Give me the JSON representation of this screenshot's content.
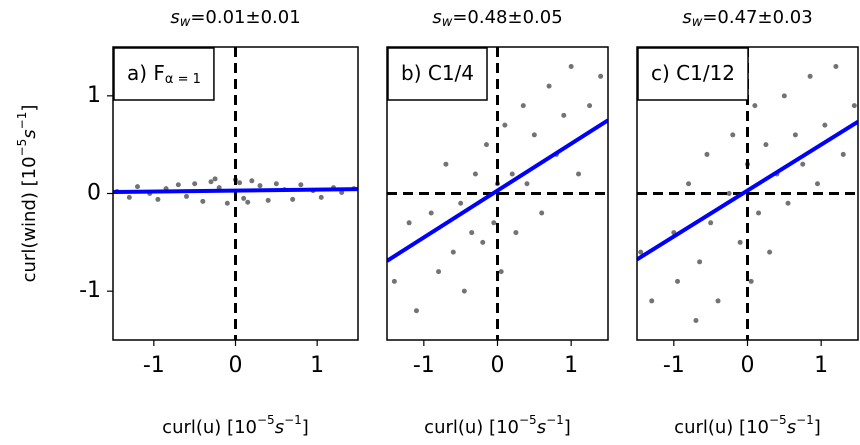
{
  "chart_data": [
    {
      "type": "scatter",
      "title": {
        "symbol": "s",
        "subscript": "w",
        "text": "=0.01±0.01"
      },
      "panel_label": {
        "text": "a) F",
        "subscript": "α = 1"
      },
      "xlabel": {
        "text": "curl(u) [10",
        "sup1": "−5",
        "unit": "s",
        "sup2": "−1",
        "close": "]"
      },
      "ylabel": {
        "text": "curl(wind) [10",
        "sup1": "−5",
        "unit": "s",
        "sup2": "−1",
        "close": "]"
      },
      "xlim": [
        -1.5,
        1.5
      ],
      "ylim": [
        -1.5,
        1.5
      ],
      "xticks": [
        -1,
        0,
        1
      ],
      "yticks": [
        -1,
        0,
        1
      ],
      "vlines": [
        0
      ],
      "hlines": [],
      "x": [
        -1.45,
        -1.3,
        -1.2,
        -1.05,
        -0.95,
        -0.85,
        -0.7,
        -0.6,
        -0.5,
        -0.4,
        -0.3,
        -0.2,
        -0.1,
        0,
        0.05,
        0.1,
        0.2,
        0.3,
        0.4,
        0.5,
        0.6,
        0.7,
        0.8,
        0.95,
        1.05,
        1.2,
        1.3,
        1.45,
        -0.25,
        0.15
      ],
      "values": [
        0.02,
        -0.04,
        0.07,
        0.0,
        -0.06,
        0.05,
        0.09,
        -0.03,
        0.1,
        -0.08,
        0.12,
        0.06,
        -0.1,
        0.14,
        0.11,
        -0.05,
        0.13,
        0.08,
        -0.07,
        0.1,
        0.04,
        -0.06,
        0.09,
        0.03,
        -0.04,
        0.06,
        0.01,
        0.05,
        0.15,
        -0.09
      ],
      "color": "#000000",
      "fit": {
        "slope": 0.01,
        "intercept": 0.03,
        "color": "#0000ff"
      }
    },
    {
      "type": "scatter",
      "title": {
        "symbol": "s",
        "subscript": "w",
        "text": "=0.48±0.05"
      },
      "panel_label": {
        "text": "b) C1/4"
      },
      "xlabel": {
        "text": "curl(u) [10",
        "sup1": "−5",
        "unit": "s",
        "sup2": "−1",
        "close": "]"
      },
      "xlim": [
        -1.5,
        1.5
      ],
      "ylim": [
        -1.5,
        1.5
      ],
      "xticks": [
        -1,
        0,
        1
      ],
      "vlines": [
        0
      ],
      "hlines": [
        0
      ],
      "x": [
        -1.4,
        -1.2,
        -1.1,
        -0.9,
        -0.8,
        -0.7,
        -0.6,
        -0.5,
        -0.45,
        -0.3,
        -0.2,
        -0.15,
        -0.05,
        0,
        0.05,
        0.1,
        0.2,
        0.25,
        0.35,
        0.4,
        0.5,
        0.6,
        0.7,
        0.8,
        0.9,
        1.0,
        1.1,
        1.25,
        1.4,
        -0.35
      ],
      "values": [
        -0.9,
        -0.3,
        -1.2,
        -0.2,
        -0.8,
        0.3,
        -0.6,
        -0.1,
        -1.0,
        0.2,
        -0.5,
        0.5,
        -0.3,
        0.1,
        -0.8,
        0.7,
        0.2,
        -0.4,
        0.9,
        0.1,
        0.6,
        -0.2,
        1.1,
        0.4,
        0.8,
        1.3,
        0.2,
        0.9,
        1.2,
        -0.4
      ],
      "color": "#000000",
      "fit": {
        "slope": 0.48,
        "intercept": 0.03,
        "color": "#0000ff"
      }
    },
    {
      "type": "scatter",
      "title": {
        "symbol": "s",
        "subscript": "w",
        "text": "=0.47±0.03"
      },
      "panel_label": {
        "text": "c) C1/12"
      },
      "xlabel": {
        "text": "curl(u) [10",
        "sup1": "−5",
        "unit": "s",
        "sup2": "−1",
        "close": "]"
      },
      "xlim": [
        -1.5,
        1.5
      ],
      "ylim": [
        -1.5,
        1.5
      ],
      "xticks": [
        -1,
        0,
        1
      ],
      "vlines": [
        0
      ],
      "hlines": [
        0
      ],
      "x": [
        -1.45,
        -1.3,
        -1.0,
        -0.95,
        -0.8,
        -0.65,
        -0.55,
        -0.5,
        -0.4,
        -0.25,
        -0.2,
        -0.1,
        0,
        0.05,
        0.1,
        0.15,
        0.25,
        0.3,
        0.4,
        0.5,
        0.55,
        0.65,
        0.75,
        0.85,
        0.95,
        1.05,
        1.2,
        1.3,
        1.45,
        -0.7
      ],
      "values": [
        -0.6,
        -1.1,
        -0.4,
        -0.9,
        0.1,
        -0.7,
        0.4,
        -0.3,
        -1.1,
        0.0,
        0.6,
        -0.5,
        0.3,
        -0.9,
        0.9,
        -0.2,
        0.5,
        -0.6,
        0.2,
        1.0,
        -0.1,
        0.6,
        0.3,
        1.2,
        0.1,
        0.7,
        1.3,
        0.4,
        0.9,
        -1.3
      ],
      "color": "#000000",
      "fit": {
        "slope": 0.47,
        "intercept": 0.03,
        "color": "#0000ff"
      }
    }
  ]
}
